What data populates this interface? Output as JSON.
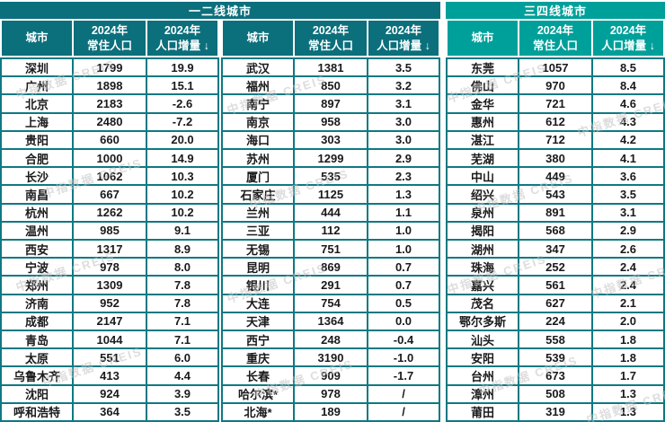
{
  "colors": {
    "dark_teal": "#0C6F7C",
    "bright_teal": "#00A09A",
    "grid_teal": "#0E7982",
    "text": "#1A1A1A",
    "watermark": "#C2C2C2"
  },
  "watermark": {
    "text": "中指数据 CREIS"
  },
  "chart_data": {
    "type": "table",
    "group_headers": [
      "一二线城市",
      "三四线城市"
    ],
    "column_headers": [
      "城市",
      "2024年常住人口",
      "2024年人口增量 ↓"
    ],
    "header_display": {
      "city": "城市",
      "population": "2024年\n常住人口",
      "increase": "2024年\n人口增量 ↓"
    },
    "tables": [
      {
        "group": "一二线城市",
        "rows": [
          [
            "深圳",
            "1799",
            "19.9"
          ],
          [
            "广州",
            "1898",
            "15.1"
          ],
          [
            "北京",
            "2183",
            "-2.6"
          ],
          [
            "上海",
            "2480",
            "-7.2"
          ],
          [
            "贵阳",
            "660",
            "20.0"
          ],
          [
            "合肥",
            "1000",
            "14.9"
          ],
          [
            "长沙",
            "1062",
            "10.3"
          ],
          [
            "南昌",
            "667",
            "10.2"
          ],
          [
            "杭州",
            "1262",
            "10.2"
          ],
          [
            "温州",
            "985",
            "9.1"
          ],
          [
            "西安",
            "1317",
            "8.9"
          ],
          [
            "宁波",
            "978",
            "8.0"
          ],
          [
            "郑州",
            "1309",
            "7.8"
          ],
          [
            "济南",
            "952",
            "7.8"
          ],
          [
            "成都",
            "2147",
            "7.1"
          ],
          [
            "青岛",
            "1044",
            "7.1"
          ],
          [
            "太原",
            "551",
            "6.0"
          ],
          [
            "乌鲁木齐",
            "413",
            "4.4"
          ],
          [
            "沈阳",
            "924",
            "3.9"
          ],
          [
            "呼和浩特",
            "364",
            "3.5"
          ]
        ]
      },
      {
        "group": "一二线城市",
        "rows": [
          [
            "武汉",
            "1381",
            "3.5"
          ],
          [
            "福州",
            "850",
            "3.2"
          ],
          [
            "南宁",
            "897",
            "3.1"
          ],
          [
            "南京",
            "958",
            "3.0"
          ],
          [
            "海口",
            "303",
            "3.0"
          ],
          [
            "苏州",
            "1299",
            "2.9"
          ],
          [
            "厦门",
            "535",
            "2.3"
          ],
          [
            "石家庄",
            "1125",
            "1.3"
          ],
          [
            "兰州",
            "444",
            "1.1"
          ],
          [
            "三亚",
            "112",
            "1.0"
          ],
          [
            "无锡",
            "751",
            "1.0"
          ],
          [
            "昆明",
            "869",
            "0.7"
          ],
          [
            "银川",
            "291",
            "0.7"
          ],
          [
            "大连",
            "754",
            "0.5"
          ],
          [
            "天津",
            "1364",
            "0.0"
          ],
          [
            "西宁",
            "248",
            "-0.4"
          ],
          [
            "重庆",
            "3190",
            "-1.0"
          ],
          [
            "长春",
            "909",
            "-1.7"
          ],
          [
            "哈尔滨*",
            "978",
            "/"
          ],
          [
            "北海*",
            "189",
            "/"
          ]
        ]
      },
      {
        "group": "三四线城市",
        "rows": [
          [
            "东莞",
            "1057",
            "8.5"
          ],
          [
            "佛山",
            "970",
            "8.4"
          ],
          [
            "金华",
            "721",
            "4.6"
          ],
          [
            "惠州",
            "612",
            "4.3"
          ],
          [
            "湛江",
            "712",
            "4.2"
          ],
          [
            "芜湖",
            "380",
            "4.1"
          ],
          [
            "中山",
            "449",
            "3.6"
          ],
          [
            "绍兴",
            "543",
            "3.5"
          ],
          [
            "泉州",
            "891",
            "3.1"
          ],
          [
            "揭阳",
            "568",
            "2.9"
          ],
          [
            "湖州",
            "347",
            "2.6"
          ],
          [
            "珠海",
            "252",
            "2.4"
          ],
          [
            "嘉兴",
            "561",
            "2.4"
          ],
          [
            "茂名",
            "627",
            "2.1"
          ],
          [
            "鄂尔多斯",
            "224",
            "2.0"
          ],
          [
            "汕头",
            "558",
            "1.8"
          ],
          [
            "安阳",
            "539",
            "1.8"
          ],
          [
            "台州",
            "673",
            "1.7"
          ],
          [
            "漳州",
            "508",
            "1.3"
          ],
          [
            "莆田",
            "319",
            "1.3"
          ]
        ]
      }
    ]
  }
}
